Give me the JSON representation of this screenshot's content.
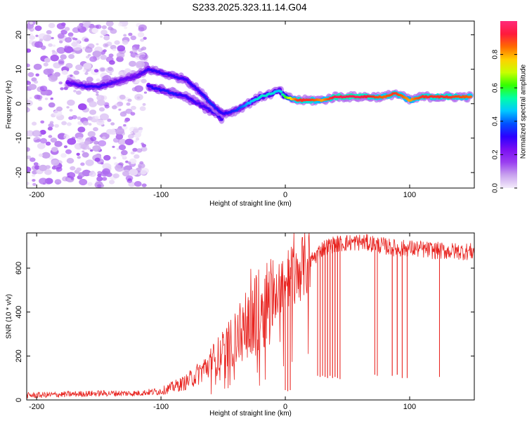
{
  "title": "S233.2025.323.11.14.G04",
  "colors": {
    "snr_line": "#e8231f",
    "background": "#ffffff",
    "axis": "#000000"
  },
  "chart_data": [
    {
      "type": "heatmap",
      "xlabel": "Height of straight line (km)",
      "ylabel": "Frequency (Hz)",
      "xlim": [
        -208,
        152
      ],
      "ylim": [
        -24.5,
        24
      ],
      "xticks": [
        -200,
        -100,
        0,
        100
      ],
      "xtick_labels": [
        "-200",
        "-100",
        "0",
        "100"
      ],
      "yticks": [
        -20,
        -10,
        0,
        10,
        20
      ],
      "ytick_labels": [
        "-20",
        "-10",
        "0",
        "10",
        "20"
      ],
      "colorbar": {
        "label": "Normalized spectral amplitude",
        "range": [
          0,
          1
        ],
        "ticks": [
          0.0,
          0.2,
          0.4,
          0.6,
          0.8
        ],
        "tick_labels": [
          "0.0",
          "0.2",
          "0.4",
          "0.6",
          "0.8"
        ],
        "colormap": [
          "#f4ecfb",
          "#c9a3ee",
          "#9a3ff0",
          "#7a0ff2",
          "#2c00ff",
          "#0050ff",
          "#00c8ff",
          "#00ffa8",
          "#33ff00",
          "#c8ff00",
          "#ffd000",
          "#ff6a00",
          "#ff1a3c",
          "#ff2a7a"
        ]
      },
      "ridge": {
        "x": [
          -175,
          -160,
          -150,
          -140,
          -130,
          -120,
          -110,
          -100,
          -90,
          -80,
          -70,
          -60,
          -50,
          -40,
          -30,
          -20,
          -10,
          -5,
          0,
          10,
          20,
          30,
          40,
          60,
          80,
          88,
          95,
          100,
          110,
          130,
          150
        ],
        "freq": [
          6,
          5,
          5,
          6,
          7,
          8,
          10,
          9,
          8,
          7,
          4,
          0,
          -3,
          -2,
          0,
          2,
          3,
          4,
          2,
          1,
          1,
          1,
          2,
          2,
          2,
          3,
          2,
          1,
          2,
          2,
          2
        ],
        "amplitude": [
          0.25,
          0.3,
          0.3,
          0.28,
          0.25,
          0.25,
          0.3,
          0.3,
          0.3,
          0.3,
          0.3,
          0.35,
          0.3,
          0.35,
          0.45,
          0.5,
          0.5,
          0.45,
          0.6,
          0.9,
          0.9,
          0.8,
          0.95,
          0.95,
          0.85,
          0.9,
          0.85,
          0.8,
          0.9,
          0.9,
          0.85
        ]
      },
      "branch": {
        "x": [
          -110,
          -100,
          -90,
          -80,
          -70,
          -60,
          -55,
          -50
        ],
        "freq": [
          5,
          4,
          3,
          2,
          0,
          -2,
          -3,
          -5
        ],
        "amplitude": [
          0.3,
          0.32,
          0.33,
          0.3,
          0.28,
          0.3,
          0.3,
          0.28
        ]
      },
      "noise_region": {
        "x_range": [
          -208,
          -112
        ],
        "freq_range": [
          -24,
          24
        ],
        "amplitude_max": 0.15
      }
    },
    {
      "type": "line",
      "xlabel": "Height of straight line (km)",
      "ylabel": "SNR (10 * v/v)",
      "xlim": [
        -208,
        152
      ],
      "ylim": [
        0,
        760
      ],
      "xticks": [
        -200,
        -100,
        0,
        100
      ],
      "xtick_labels": [
        "-200",
        "-100",
        "0",
        "100"
      ],
      "yticks": [
        0,
        200,
        400,
        600
      ],
      "ytick_labels": [
        "0",
        "200",
        "400",
        "600"
      ],
      "trend": {
        "x": [
          -208,
          -180,
          -150,
          -120,
          -100,
          -80,
          -70,
          -60,
          -50,
          -40,
          -30,
          -20,
          -10,
          -5,
          0,
          5,
          10,
          20,
          25,
          30,
          40,
          50,
          60,
          70,
          80,
          90,
          100,
          110,
          120,
          130,
          140,
          152
        ],
        "snr": [
          20,
          25,
          30,
          30,
          40,
          80,
          120,
          170,
          220,
          280,
          350,
          420,
          470,
          510,
          540,
          570,
          590,
          630,
          660,
          690,
          710,
          715,
          718,
          712,
          700,
          690,
          690,
          685,
          680,
          678,
          676,
          675
        ]
      },
      "dropouts": {
        "x": [
          0,
          2,
          4,
          26,
          28,
          30,
          32,
          34,
          36,
          38,
          40,
          42,
          44,
          72,
          74,
          86,
          90,
          94,
          98,
          124
        ],
        "snr": [
          45,
          40,
          45,
          110,
          105,
          110,
          105,
          100,
          110,
          100,
          105,
          100,
          95,
          115,
          110,
          110,
          115,
          100,
          100,
          105
        ]
      }
    }
  ]
}
